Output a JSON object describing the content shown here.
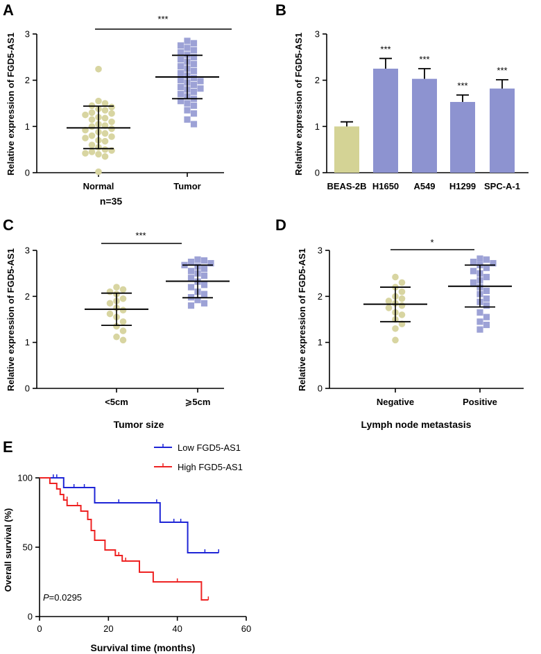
{
  "colors": {
    "normal": "#d8d5a1",
    "tumor": "#9da2d6",
    "bar_control": "#d4d395",
    "bar_cell": "#8d93d0",
    "low": "#1d24d6",
    "high": "#ee2222",
    "axis": "#000000"
  },
  "chart_data": [
    {
      "panel": "A",
      "type": "scatter",
      "ylabel": "Relative expression of FGD5-AS1",
      "ylim": [
        0,
        3
      ],
      "yticks": [
        "0",
        "1",
        "2",
        "3"
      ],
      "categories": [
        "Normal",
        "Tumor"
      ],
      "xtitle": "n=35",
      "significance": "***",
      "groups": [
        {
          "name": "Normal",
          "marker": "circle",
          "color": "#d8d5a1",
          "mean": 0.97,
          "sd_low": 0.52,
          "sd_high": 1.44,
          "values": [
            2.24,
            1.55,
            1.5,
            1.45,
            1.42,
            1.38,
            1.35,
            1.3,
            1.28,
            1.25,
            1.2,
            1.18,
            1.15,
            1.1,
            1.05,
            1.02,
            1.0,
            0.95,
            0.92,
            0.88,
            0.85,
            0.8,
            0.78,
            0.75,
            0.7,
            0.68,
            0.6,
            0.55,
            0.5,
            0.48,
            0.45,
            0.42,
            0.4,
            0.35,
            0.02
          ]
        },
        {
          "name": "Tumor",
          "marker": "square",
          "color": "#9da2d6",
          "mean": 2.07,
          "sd_low": 1.6,
          "sd_high": 2.54,
          "values": [
            2.85,
            2.8,
            2.75,
            2.7,
            2.65,
            2.6,
            2.55,
            2.5,
            2.45,
            2.4,
            2.35,
            2.3,
            2.25,
            2.2,
            2.15,
            2.1,
            2.05,
            2.0,
            1.98,
            1.95,
            1.9,
            1.85,
            1.82,
            1.8,
            1.75,
            1.7,
            1.65,
            1.6,
            1.55,
            1.5,
            1.45,
            1.35,
            1.28,
            1.15,
            1.05
          ]
        }
      ]
    },
    {
      "panel": "B",
      "type": "bar",
      "ylabel": "Relative expression of FGD5-AS1",
      "ylim": [
        0,
        3
      ],
      "yticks": [
        "0",
        "1",
        "2",
        "3"
      ],
      "categories": [
        "BEAS-2B",
        "H1650",
        "A549",
        "H1299",
        "SPC-A-1"
      ],
      "values": [
        1.0,
        2.25,
        2.03,
        1.53,
        1.82
      ],
      "errors": [
        0.1,
        0.22,
        0.22,
        0.15,
        0.19
      ],
      "significance": [
        "",
        "***",
        "***",
        "***",
        "***"
      ]
    },
    {
      "panel": "C",
      "type": "scatter",
      "ylabel": "Relative expression of FGD5-AS1",
      "ylim": [
        0,
        3
      ],
      "yticks": [
        "0",
        "1",
        "2",
        "3"
      ],
      "categories": [
        "<5cm",
        "⩾5cm"
      ],
      "xtitle": "Tumor size",
      "significance": "***",
      "groups": [
        {
          "name": "<5cm",
          "marker": "circle",
          "color": "#d8d5a1",
          "mean": 1.72,
          "sd_low": 1.37,
          "sd_high": 2.07,
          "values": [
            2.2,
            2.15,
            2.1,
            2.05,
            1.95,
            1.9,
            1.85,
            1.75,
            1.7,
            1.62,
            1.55,
            1.45,
            1.35,
            1.25,
            1.12,
            1.05
          ]
        },
        {
          "name": "⩾5cm",
          "marker": "square",
          "color": "#9da2d6",
          "mean": 2.33,
          "sd_low": 1.97,
          "sd_high": 2.68,
          "values": [
            2.8,
            2.78,
            2.75,
            2.72,
            2.68,
            2.65,
            2.6,
            2.55,
            2.5,
            2.45,
            2.4,
            2.32,
            2.25,
            2.2,
            2.1,
            2.05,
            1.98,
            1.92,
            1.85,
            1.8
          ]
        }
      ]
    },
    {
      "panel": "D",
      "type": "scatter",
      "ylabel": "Relative expression of FGD5-AS1",
      "ylim": [
        0,
        3
      ],
      "yticks": [
        "0",
        "1",
        "2",
        "3"
      ],
      "categories": [
        "Negative",
        "Positive"
      ],
      "xtitle": "Lymph node metastasis",
      "significance": "*",
      "groups": [
        {
          "name": "Negative",
          "marker": "circle",
          "color": "#d8d5a1",
          "mean": 1.83,
          "sd_low": 1.45,
          "sd_high": 2.2,
          "values": [
            2.42,
            2.3,
            2.2,
            2.1,
            2.0,
            1.95,
            1.9,
            1.85,
            1.8,
            1.75,
            1.65,
            1.6,
            1.5,
            1.4,
            1.3,
            1.05
          ]
        },
        {
          "name": "Positive",
          "marker": "square",
          "color": "#9da2d6",
          "mean": 2.22,
          "sd_low": 1.77,
          "sd_high": 2.68,
          "values": [
            2.82,
            2.8,
            2.75,
            2.72,
            2.68,
            2.62,
            2.55,
            2.5,
            2.42,
            2.35,
            2.3,
            2.2,
            2.12,
            2.05,
            1.95,
            1.88,
            1.8,
            1.65,
            1.55,
            1.45,
            1.38,
            1.28
          ]
        }
      ]
    },
    {
      "panel": "E",
      "type": "line",
      "subtype": "kaplan-meier",
      "ylabel": "Overall survival (%)",
      "xlabel": "Survival time (months)",
      "xlim": [
        0,
        60
      ],
      "ylim": [
        0,
        100
      ],
      "xticks": [
        "0",
        "20",
        "40",
        "60"
      ],
      "yticks": [
        "0",
        "50",
        "100"
      ],
      "pvalue_label": "P",
      "pvalue_text": "=0.0295",
      "series": [
        {
          "name": "Low FGD5-AS1",
          "color": "#1d24d6",
          "steps": [
            [
              0,
              100
            ],
            [
              7,
              100
            ],
            [
              7,
              93
            ],
            [
              16,
              93
            ],
            [
              16,
              82
            ],
            [
              35,
              82
            ],
            [
              35,
              68
            ],
            [
              43,
              68
            ],
            [
              43,
              46
            ],
            [
              52,
              46
            ]
          ],
          "censored": [
            [
              4,
              100
            ],
            [
              5,
              100
            ],
            [
              10,
              93
            ],
            [
              13,
              93
            ],
            [
              23,
              82
            ],
            [
              34,
              82
            ],
            [
              39,
              68
            ],
            [
              41,
              68
            ],
            [
              48,
              46
            ],
            [
              52,
              46
            ]
          ]
        },
        {
          "name": "High FGD5-AS1",
          "color": "#ee2222",
          "steps": [
            [
              0,
              100
            ],
            [
              3,
              100
            ],
            [
              3,
              96
            ],
            [
              5,
              96
            ],
            [
              5,
              92
            ],
            [
              6,
              92
            ],
            [
              6,
              88
            ],
            [
              7,
              88
            ],
            [
              7,
              84
            ],
            [
              8,
              84
            ],
            [
              8,
              80
            ],
            [
              12,
              80
            ],
            [
              12,
              76
            ],
            [
              14,
              76
            ],
            [
              14,
              70
            ],
            [
              15,
              70
            ],
            [
              15,
              62
            ],
            [
              16,
              62
            ],
            [
              16,
              55
            ],
            [
              19,
              55
            ],
            [
              19,
              48
            ],
            [
              22,
              48
            ],
            [
              22,
              44
            ],
            [
              24,
              44
            ],
            [
              24,
              40
            ],
            [
              29,
              40
            ],
            [
              29,
              32
            ],
            [
              33,
              32
            ],
            [
              33,
              25
            ],
            [
              47,
              25
            ],
            [
              47,
              12
            ],
            [
              49,
              12
            ]
          ],
          "censored": [
            [
              8,
              84
            ],
            [
              11,
              80
            ],
            [
              15,
              67
            ],
            [
              23,
              44
            ],
            [
              25,
              40
            ],
            [
              40,
              25
            ],
            [
              49,
              12
            ]
          ]
        }
      ]
    }
  ]
}
